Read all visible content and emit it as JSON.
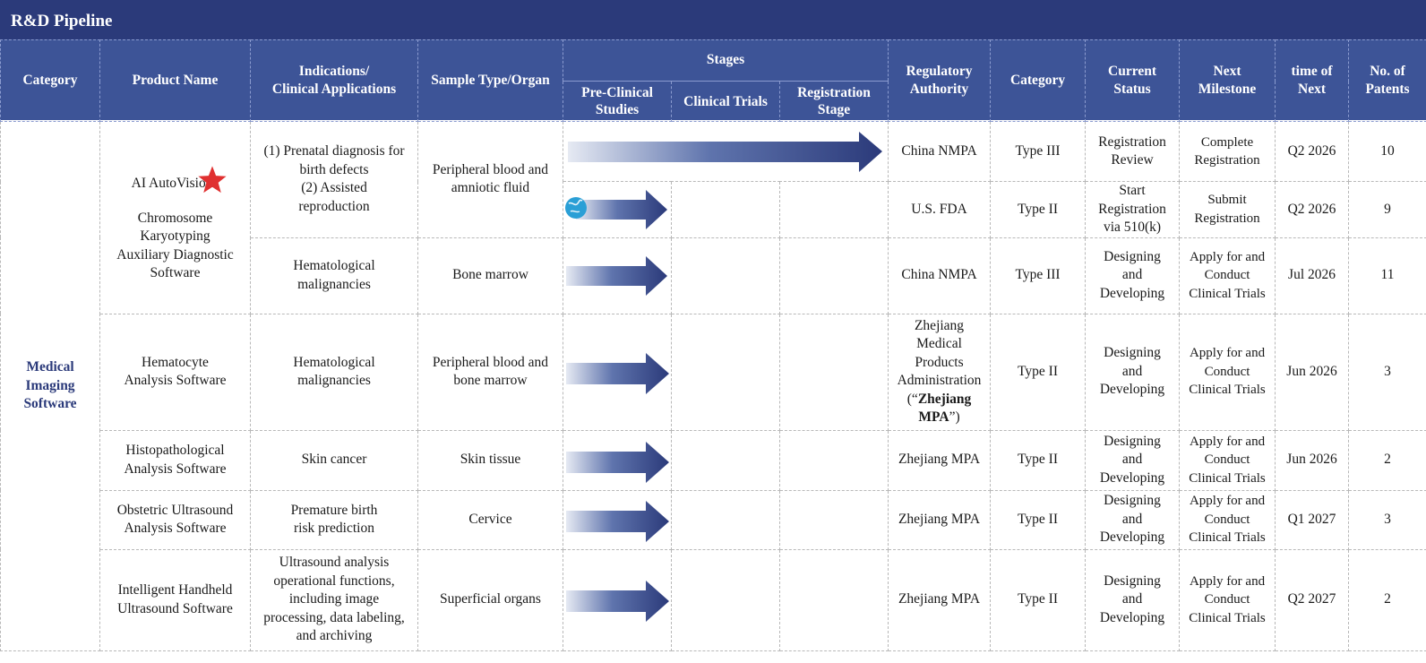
{
  "title": "R&D Pipeline",
  "headers": {
    "category": "Category",
    "product_name": "Product Name",
    "indications_line1": "Indications/",
    "indications_line2": "Clinical Applications",
    "sample_type": "Sample Type/Organ",
    "stages": "Stages",
    "preclinical_line1": "Pre-Clinical",
    "preclinical_line2": "Studies",
    "clinical_trials": "Clinical Trials",
    "registration_line1": "Registration",
    "registration_line2": "Stage",
    "regulatory_line1": "Regulatory",
    "regulatory_line2": "Authority",
    "category2": "Category",
    "status_line1": "Current",
    "status_line2": "Status",
    "milestone_line1": "Next",
    "milestone_line2": "Milestone",
    "time_line1": "time  of",
    "time_line2": "Next",
    "patents_line1": "No. of",
    "patents_line2": "Patents"
  },
  "category_group": {
    "line1": "Medical",
    "line2": "Imaging",
    "line3": "Software"
  },
  "products": {
    "p1_name": "AI AutoVision",
    "p1_reg": "®",
    "p1_sub1": "Chromosome",
    "p1_sub2": "Karyotyping",
    "p1_sub3": "Auxiliary Diagnostic",
    "p1_sub4": "Software",
    "p2_line1": "Hematocyte",
    "p2_line2": "Analysis Software",
    "p3_line1": "Histopathological",
    "p3_line2": "Analysis Software",
    "p4_line1": "Obstetric Ultrasound",
    "p4_line2": "Analysis Software",
    "p5_line1": "Intelligent Handheld",
    "p5_line2": "Ultrasound Software"
  },
  "indications": {
    "r1_l1": "(1) Prenatal diagnosis for",
    "r1_l2": "birth defects",
    "r1_l3": "(2) Assisted",
    "r1_l4": "reproduction",
    "r3_l1": "Hematological",
    "r3_l2": "malignancies",
    "r4_l1": "Hematological",
    "r4_l2": "malignancies",
    "r5": "Skin cancer",
    "r6_l1": "Premature birth",
    "r6_l2": "risk prediction",
    "r7_l1": "Ultrasound analysis",
    "r7_l2": "operational functions,",
    "r7_l3": "including image",
    "r7_l4": "processing, data labeling,",
    "r7_l5": "and archiving"
  },
  "samples": {
    "r1_l1": "Peripheral blood and",
    "r1_l2": "amniotic fluid",
    "r3": "Bone marrow",
    "r4_l1": "Peripheral blood and",
    "r4_l2": "bone marrow",
    "r5": "Skin tissue",
    "r6": "Cervice",
    "r7": "Superficial organs"
  },
  "stage_progress": [
    {
      "row": 1,
      "stage_reached": "Registration Stage",
      "icon": "trophy-icon"
    },
    {
      "row": 2,
      "stage_reached": "Pre-Clinical Studies",
      "icon": "globe-icon"
    },
    {
      "row": 3,
      "stage_reached": "Pre-Clinical Studies"
    },
    {
      "row": 4,
      "stage_reached": "Pre-Clinical Studies"
    },
    {
      "row": 5,
      "stage_reached": "Pre-Clinical Studies"
    },
    {
      "row": 6,
      "stage_reached": "Pre-Clinical Studies"
    },
    {
      "row": 7,
      "stage_reached": "Pre-Clinical Studies"
    }
  ],
  "rows": [
    {
      "authority": "China  NMPA",
      "category": "Type III",
      "status_l1": "Registration",
      "status_l2": "Review",
      "status_l3": "",
      "milestone_l1": "Complete",
      "milestone_l2": "Registration",
      "milestone_l3": "",
      "time": "Q2 2026",
      "patents": "10"
    },
    {
      "authority": "U.S.  FDA",
      "category": "Type II",
      "status_l1": "Start",
      "status_l2": "Registration",
      "status_l3": "via 510(k)",
      "milestone_l1": "Submit",
      "milestone_l2": "Registration",
      "milestone_l3": "",
      "time": "Q2 2026",
      "patents": "9"
    },
    {
      "authority": "China  NMPA",
      "category": "Type III",
      "status_l1": "Designing",
      "status_l2": "and",
      "status_l3": "Developing",
      "milestone_l1": "Apply for and",
      "milestone_l2": "Conduct",
      "milestone_l3": "Clinical Trials",
      "time": "Jul 2026",
      "patents": "11"
    },
    {
      "authority_l1": "Zhejiang",
      "authority_l2": "Medical",
      "authority_l3": "Products",
      "authority_l4": "Administration",
      "authority_l5a": "(“",
      "authority_l5b": "Zhejiang",
      "authority_l6b": "MPA",
      "authority_l6c": "”)",
      "category": "Type II",
      "status_l1": "Designing",
      "status_l2": "and",
      "status_l3": "Developing",
      "milestone_l1": "Apply for and",
      "milestone_l2": "Conduct",
      "milestone_l3": "Clinical Trials",
      "time": "Jun 2026",
      "patents": "3"
    },
    {
      "authority": "Zhejiang MPA",
      "category": "Type II",
      "status_l1": "Designing",
      "status_l2": "and",
      "status_l3": "Developing",
      "milestone_l1": "Apply for and",
      "milestone_l2": "Conduct",
      "milestone_l3": "Clinical Trials",
      "time": "Jun 2026",
      "patents": "2"
    },
    {
      "authority": "Zhejiang MPA",
      "category": "Type II",
      "status_l1": "Designing",
      "status_l2": "and",
      "status_l3": "Developing",
      "milestone_l1": "Apply for and",
      "milestone_l2": "Conduct",
      "milestone_l3": "Clinical Trials",
      "time": "Q1 2027",
      "patents": "3"
    },
    {
      "authority": "Zhejiang MPA",
      "category": "Type II",
      "status_l1": "Designing",
      "status_l2": "and",
      "status_l3": "Developing",
      "milestone_l1": "Apply for and",
      "milestone_l2": "Conduct",
      "milestone_l3": "Clinical Trials",
      "time": "Q2 2027",
      "patents": "2"
    }
  ],
  "colors": {
    "title_bg": "#2b3a7a",
    "header_bg": "#3d5497",
    "arrow_dark": "#2b3a7a",
    "arrow_light": "#e6eaf3",
    "star": "#e03030",
    "trophy": "#e8a23a",
    "globe": "#2a9fd6"
  }
}
